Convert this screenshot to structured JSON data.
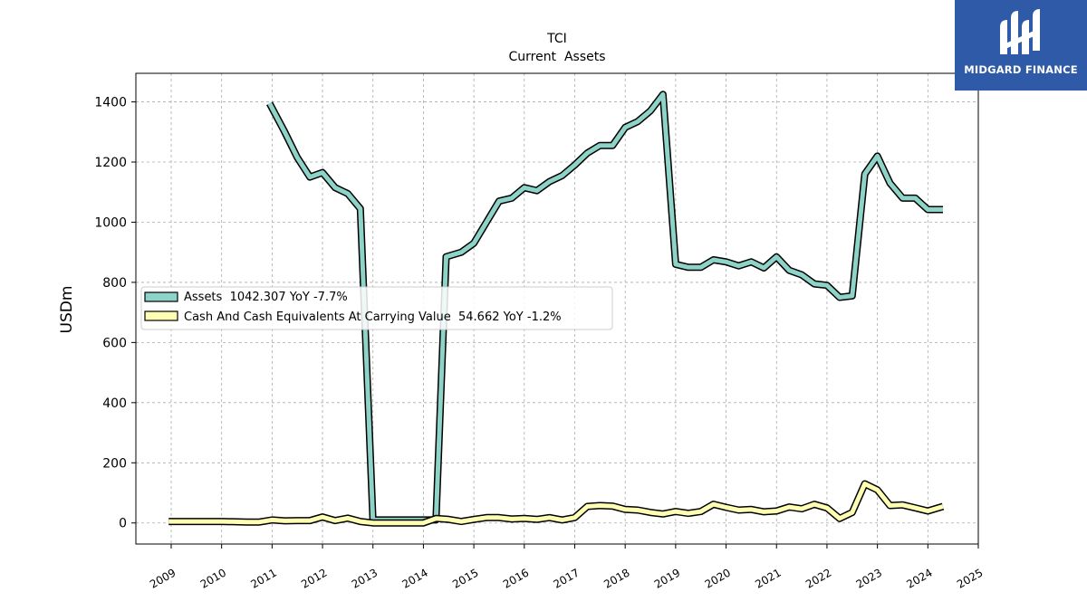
{
  "brand": {
    "name": "MIDGARD FINANCE",
    "color": "#2e5aa7"
  },
  "chart_data": {
    "type": "line",
    "title": "TCI",
    "subtitle": "Current  Assets",
    "xlabel": "",
    "ylabel": "USDm",
    "xlim": [
      2008.3,
      2025.0
    ],
    "ylim": [
      -70,
      1495
    ],
    "yticks": [
      0,
      200,
      400,
      600,
      800,
      1000,
      1200,
      1400
    ],
    "xticks": [
      "2009",
      "2010",
      "2011",
      "2012",
      "2013",
      "2014",
      "2015",
      "2016",
      "2017",
      "2018",
      "2019",
      "2020",
      "2021",
      "2022",
      "2023",
      "2024",
      "2025"
    ],
    "grid": true,
    "legend_position": "center-left",
    "series": [
      {
        "name": "Assets",
        "legend_label": "Assets  1042.307 YoY -7.7%",
        "color": "#8dd3c7",
        "points": [
          [
            2010.95,
            1395
          ],
          [
            2011.25,
            1300
          ],
          [
            2011.5,
            1215
          ],
          [
            2011.75,
            1150
          ],
          [
            2012.0,
            1165
          ],
          [
            2012.25,
            1115
          ],
          [
            2012.5,
            1095
          ],
          [
            2012.75,
            1045
          ],
          [
            2013.0,
            10
          ],
          [
            2013.25,
            10
          ],
          [
            2013.5,
            10
          ],
          [
            2013.75,
            10
          ],
          [
            2014.0,
            10
          ],
          [
            2014.25,
            10
          ],
          [
            2014.45,
            885
          ],
          [
            2014.75,
            900
          ],
          [
            2015.0,
            930
          ],
          [
            2015.25,
            1000
          ],
          [
            2015.5,
            1070
          ],
          [
            2015.75,
            1080
          ],
          [
            2016.0,
            1115
          ],
          [
            2016.25,
            1105
          ],
          [
            2016.5,
            1135
          ],
          [
            2016.75,
            1155
          ],
          [
            2017.0,
            1190
          ],
          [
            2017.25,
            1230
          ],
          [
            2017.5,
            1255
          ],
          [
            2017.75,
            1255
          ],
          [
            2018.0,
            1315
          ],
          [
            2018.25,
            1335
          ],
          [
            2018.5,
            1370
          ],
          [
            2018.75,
            1425
          ],
          [
            2019.0,
            860
          ],
          [
            2019.25,
            850
          ],
          [
            2019.5,
            850
          ],
          [
            2019.75,
            875
          ],
          [
            2020.0,
            868
          ],
          [
            2020.25,
            855
          ],
          [
            2020.5,
            868
          ],
          [
            2020.75,
            848
          ],
          [
            2021.0,
            885
          ],
          [
            2021.25,
            840
          ],
          [
            2021.5,
            825
          ],
          [
            2021.75,
            795
          ],
          [
            2022.0,
            790
          ],
          [
            2022.25,
            750
          ],
          [
            2022.5,
            755
          ],
          [
            2022.75,
            1160
          ],
          [
            2023.0,
            1220
          ],
          [
            2023.25,
            1130
          ],
          [
            2023.5,
            1080
          ],
          [
            2023.75,
            1080
          ],
          [
            2024.0,
            1042
          ],
          [
            2024.3,
            1042
          ]
        ]
      },
      {
        "name": "Cash And Cash Equivalents At Carrying Value",
        "legend_label": "Cash And Cash Equivalents At Carrying Value  54.662 YoY -1.2%",
        "color": "#ffffb3",
        "points": [
          [
            2008.95,
            5
          ],
          [
            2009.25,
            5
          ],
          [
            2009.5,
            5
          ],
          [
            2009.75,
            5
          ],
          [
            2010.0,
            5
          ],
          [
            2010.25,
            4
          ],
          [
            2010.5,
            3
          ],
          [
            2010.75,
            3
          ],
          [
            2011.0,
            10
          ],
          [
            2011.25,
            7
          ],
          [
            2011.5,
            8
          ],
          [
            2011.75,
            8
          ],
          [
            2012.0,
            20
          ],
          [
            2012.25,
            8
          ],
          [
            2012.5,
            16
          ],
          [
            2012.75,
            5
          ],
          [
            2013.0,
            0
          ],
          [
            2013.25,
            0
          ],
          [
            2013.5,
            0
          ],
          [
            2013.75,
            0
          ],
          [
            2014.0,
            0
          ],
          [
            2014.25,
            15
          ],
          [
            2014.5,
            12
          ],
          [
            2014.75,
            5
          ],
          [
            2015.0,
            12
          ],
          [
            2015.25,
            18
          ],
          [
            2015.5,
            18
          ],
          [
            2015.75,
            13
          ],
          [
            2016.0,
            15
          ],
          [
            2016.25,
            12
          ],
          [
            2016.5,
            18
          ],
          [
            2016.75,
            10
          ],
          [
            2017.0,
            18
          ],
          [
            2017.25,
            55
          ],
          [
            2017.5,
            58
          ],
          [
            2017.75,
            56
          ],
          [
            2018.0,
            45
          ],
          [
            2018.25,
            43
          ],
          [
            2018.5,
            35
          ],
          [
            2018.75,
            30
          ],
          [
            2019.0,
            38
          ],
          [
            2019.25,
            32
          ],
          [
            2019.5,
            38
          ],
          [
            2019.75,
            62
          ],
          [
            2020.0,
            52
          ],
          [
            2020.25,
            43
          ],
          [
            2020.5,
            45
          ],
          [
            2020.75,
            37
          ],
          [
            2021.0,
            40
          ],
          [
            2021.25,
            53
          ],
          [
            2021.5,
            47
          ],
          [
            2021.75,
            62
          ],
          [
            2022.0,
            50
          ],
          [
            2022.25,
            15
          ],
          [
            2022.5,
            35
          ],
          [
            2022.75,
            130
          ],
          [
            2023.0,
            110
          ],
          [
            2023.25,
            58
          ],
          [
            2023.5,
            60
          ],
          [
            2023.75,
            50
          ],
          [
            2024.0,
            40
          ],
          [
            2024.3,
            55
          ]
        ]
      }
    ]
  }
}
